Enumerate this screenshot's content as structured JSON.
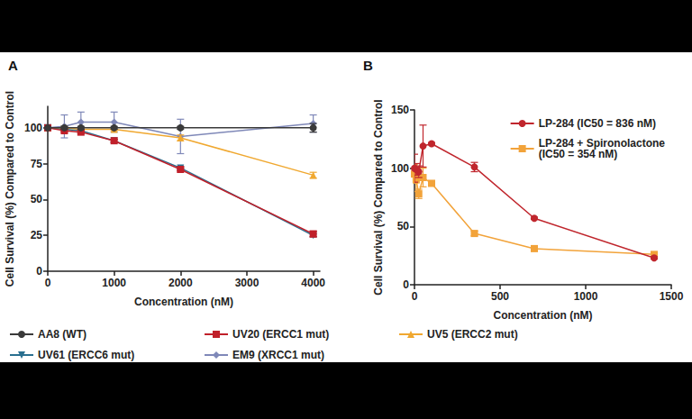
{
  "chart_data": [
    {
      "type": "line",
      "title": "A",
      "xlabel": "Concentration (nM)",
      "ylabel": "Cell Survival (%) Compared to Control",
      "x": [
        0,
        250,
        500,
        1000,
        2000,
        4000
      ],
      "xlim": [
        0,
        4100
      ],
      "ylim": [
        0,
        115
      ],
      "xticks": [
        0,
        1000,
        2000,
        3000,
        4000
      ],
      "yticks": [
        0,
        25,
        50,
        75,
        100
      ],
      "grid": false,
      "legend": "bottom",
      "series": [
        {
          "name": "AA8 (WT)",
          "color": "#3a3a3a",
          "marker": "circle",
          "values": [
            100,
            100,
            100,
            100,
            100,
            100
          ],
          "errors": [
            0,
            1,
            1,
            1,
            1,
            3
          ]
        },
        {
          "name": "UV20 (ERCC1 mut)",
          "color": "#c0202a",
          "marker": "square",
          "values": [
            100,
            98,
            97,
            91,
            71,
            26
          ],
          "errors": [
            0,
            1,
            1,
            1,
            1,
            2
          ]
        },
        {
          "name": "UV5 (ERCC2 mut)",
          "color": "#f0a830",
          "marker": "triangle",
          "values": [
            100,
            100,
            99,
            99,
            93,
            67
          ],
          "errors": [
            0,
            1,
            1,
            1,
            2,
            2
          ]
        },
        {
          "name": "UV61 (ERCC6 mut)",
          "color": "#2a6f8f",
          "marker": "triangle-down",
          "values": [
            100,
            99,
            98,
            91,
            72,
            25
          ],
          "errors": [
            0,
            1,
            1,
            1,
            1,
            1
          ]
        },
        {
          "name": "EM9 (XRCC1 mut)",
          "color": "#7f88b8",
          "marker": "diamond",
          "values": [
            100,
            101,
            104,
            104,
            94,
            103
          ],
          "errors": [
            0,
            8,
            7,
            7,
            12,
            6
          ]
        }
      ]
    },
    {
      "type": "line",
      "title": "B",
      "xlabel": "Concentration (nM)",
      "ylabel": "Cell Survival (%) Compared to Control",
      "x": [
        0,
        10,
        25,
        50,
        100,
        350,
        700,
        1400
      ],
      "xlim": [
        0,
        1500
      ],
      "ylim": [
        0,
        150
      ],
      "xticks": [
        0,
        500,
        1000,
        1500
      ],
      "yticks": [
        0,
        50,
        100,
        150
      ],
      "grid": false,
      "legend": "top-right",
      "series": [
        {
          "name": "LP-284 (IC50 = 836 nM)",
          "color": "#c0262d",
          "marker": "circle",
          "values": [
            100,
            99,
            97,
            119,
            121,
            101,
            57,
            23
          ],
          "errors": [
            12,
            5,
            5,
            18,
            1,
            4,
            1,
            1
          ]
        },
        {
          "name": "LP-284 + Spironolactone\n(IC50 = 354 nM)",
          "color": "#f2a33a",
          "marker": "square",
          "values": [
            95,
            90,
            78,
            92,
            87,
            44,
            31,
            26
          ],
          "errors": [
            8,
            10,
            4,
            8,
            2,
            2,
            1,
            1
          ]
        }
      ]
    }
  ]
}
